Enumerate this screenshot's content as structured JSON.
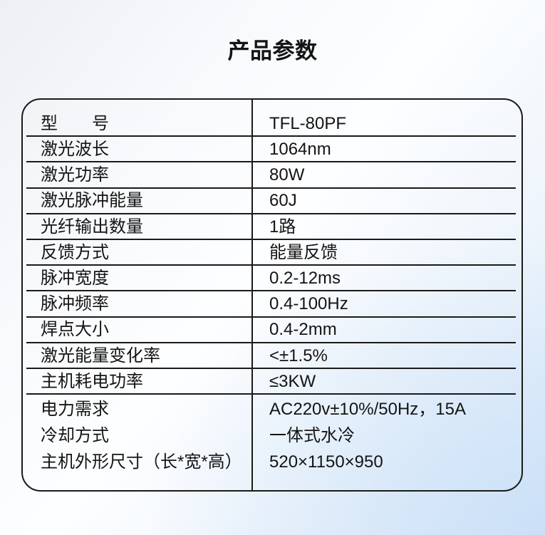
{
  "page": {
    "title": "产品参数"
  },
  "table": {
    "rows": [
      {
        "label": "型　　号",
        "value": "TFL-80PF"
      },
      {
        "label": "激光波长",
        "value": "1064nm"
      },
      {
        "label": "激光功率",
        "value": "80W"
      },
      {
        "label": "激光脉冲能量",
        "value": "60J"
      },
      {
        "label": "光纤输出数量",
        "value": "1路"
      },
      {
        "label": "反馈方式",
        "value": "能量反馈"
      },
      {
        "label": "脉冲宽度",
        "value": "0.2-12ms"
      },
      {
        "label": "脉冲频率",
        "value": "0.4-100Hz"
      },
      {
        "label": "焊点大小",
        "value": "0.4-2mm"
      },
      {
        "label": "激光能量变化率",
        "value": "<±1.5%"
      },
      {
        "label": "主机耗电功率",
        "value": "≤3KW"
      }
    ],
    "footer_rows": [
      {
        "label": "电力需求",
        "value": "AC220v±10%/50Hz，15A"
      },
      {
        "label": "冷却方式",
        "value": "一体式水冷"
      },
      {
        "label": "主机外形尺寸（长*宽*高）",
        "value": "520×1150×950"
      }
    ],
    "colors": {
      "border": "#1a1a1a",
      "text": "#141414",
      "background_tint": "#dcebfa"
    }
  }
}
